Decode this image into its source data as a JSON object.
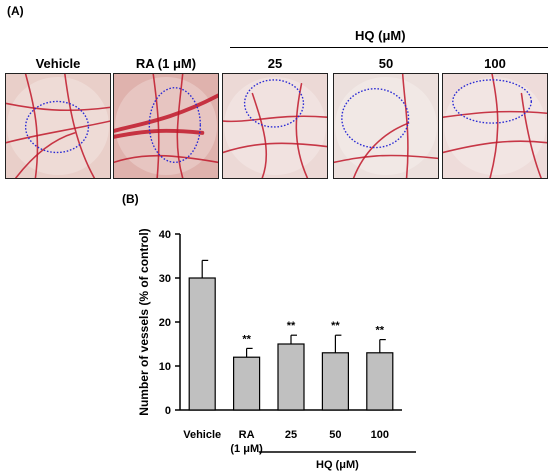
{
  "panel_a": {
    "label": "(A)",
    "group_label": "HQ (μM)",
    "images": [
      {
        "title": "Vehicle",
        "bg": "#e9cfc9"
      },
      {
        "title": "RA (1 μM)",
        "bg": "#dfb2ad"
      },
      {
        "title": "25",
        "bg": "#ecd9d6"
      },
      {
        "title": "50",
        "bg": "#ece0dd"
      },
      {
        "title": "100",
        "bg": "#eedcda"
      }
    ],
    "vessel_color": "#c0182a",
    "ring_color": "#2a2ad4"
  },
  "panel_b": {
    "label": "(B)"
  },
  "chart_data": {
    "type": "bar",
    "categories": [
      "Vehicle",
      "RA\n(1 μM)",
      "25",
      "50",
      "100"
    ],
    "series": [
      {
        "values": [
          30,
          12,
          15,
          13,
          13
        ],
        "errors": [
          4,
          2,
          2,
          4,
          3
        ],
        "annotations": [
          "",
          "**",
          "**",
          "**",
          "**"
        ]
      }
    ],
    "ylabel": "Number of vessels (% of control)",
    "xlabel": "",
    "group_label": "HQ (μM)",
    "yticks": [
      0,
      10,
      20,
      30,
      40
    ],
    "ylim": [
      0,
      40
    ],
    "bar_color": "#c0c0c0",
    "grid": false
  }
}
